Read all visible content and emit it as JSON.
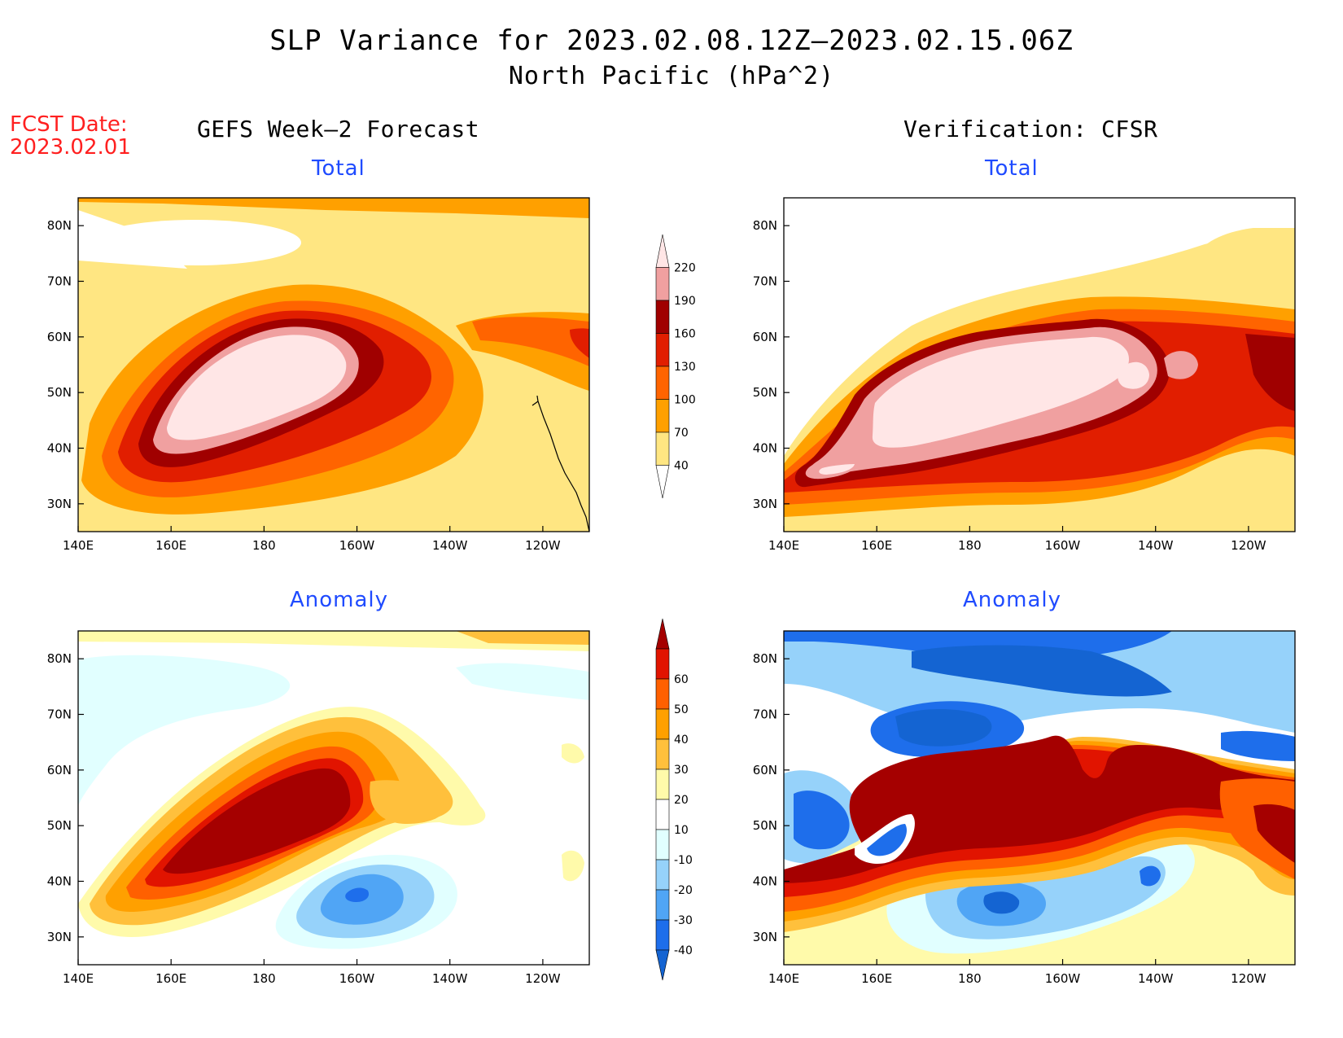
{
  "title": {
    "line1": "SLP Variance for 2023.02.08.12Z–2023.02.15.06Z",
    "line2": "North Pacific (hPa^2)"
  },
  "forecast_date": {
    "label": "FCST Date:",
    "value": "2023.02.01"
  },
  "columns": {
    "left": "GEFS Week–2 Forecast",
    "right": "Verification: CFSR"
  },
  "panel_titles": {
    "total": "Total",
    "anomaly": "Anomaly"
  },
  "axes": {
    "lon_ticks": [
      "140E",
      "160E",
      "180",
      "160W",
      "140W",
      "120W"
    ],
    "lat_ticks": [
      "80N",
      "70N",
      "60N",
      "50N",
      "40N",
      "30N"
    ],
    "lon_range": [
      140,
      250
    ],
    "lat_range": [
      25,
      85
    ]
  },
  "colorbars": {
    "total": {
      "levels": [
        "40",
        "70",
        "100",
        "130",
        "160",
        "190",
        "220"
      ],
      "colors": [
        "#ffffff",
        "#ffe682",
        "#ffa000",
        "#ff6400",
        "#e11e00",
        "#a00000",
        "#f0a0a0",
        "#ffe6e6"
      ]
    },
    "anomaly": {
      "levels": [
        "-40",
        "-30",
        "-20",
        "-10",
        "10",
        "20",
        "30",
        "40",
        "50",
        "60"
      ],
      "colors": [
        "#1464d2",
        "#1e6eeb",
        "#50a5f5",
        "#96d2fa",
        "#e1ffff",
        "#ffffff",
        "#fffaaa",
        "#ffc03c",
        "#ffa000",
        "#ff6000",
        "#e11400",
        "#a50000"
      ]
    }
  }
}
